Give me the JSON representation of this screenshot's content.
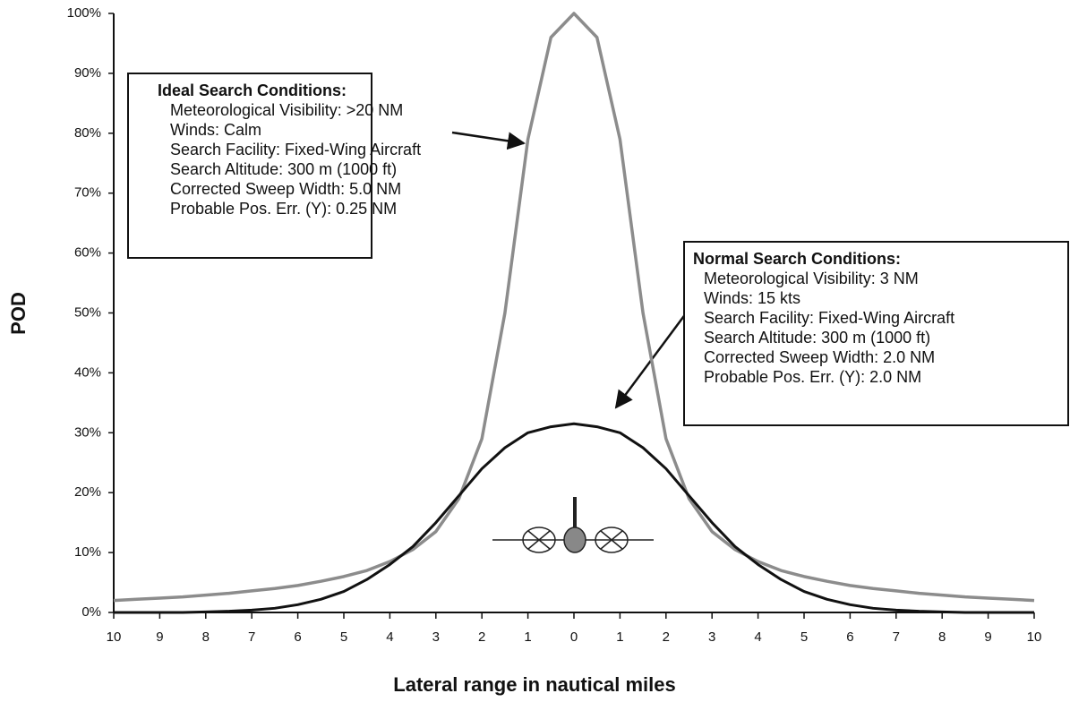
{
  "chart_data": {
    "type": "line",
    "xlabel": "Lateral range in nautical miles",
    "ylabel": "POD",
    "x": [
      -10,
      -9.5,
      -9,
      -8.5,
      -8,
      -7.5,
      -7,
      -6.5,
      -6,
      -5.5,
      -5,
      -4.5,
      -4,
      -3.5,
      -3,
      -2.5,
      -2,
      -1.5,
      -1,
      -0.5,
      0,
      0.5,
      1,
      1.5,
      2,
      2.5,
      3,
      3.5,
      4,
      4.5,
      5,
      5.5,
      6,
      6.5,
      7,
      7.5,
      8,
      8.5,
      9,
      9.5,
      10
    ],
    "series": [
      {
        "name": "Ideal Search Conditions",
        "color": "#8c8c8c",
        "values": [
          2,
          2.2,
          2.4,
          2.6,
          2.9,
          3.2,
          3.6,
          4,
          4.5,
          5.2,
          6,
          7,
          8.5,
          10.5,
          13.5,
          19,
          29,
          50,
          79,
          96,
          100,
          96,
          79,
          50,
          29,
          19,
          13.5,
          10.5,
          8.5,
          7,
          6,
          5.2,
          4.5,
          4,
          3.6,
          3.2,
          2.9,
          2.6,
          2.4,
          2.2,
          2
        ]
      },
      {
        "name": "Normal Search Conditions",
        "color": "#111111",
        "values": [
          0,
          0,
          0,
          0,
          0.1,
          0.2,
          0.4,
          0.7,
          1.3,
          2.2,
          3.5,
          5.5,
          8,
          11,
          15,
          19.5,
          24,
          27.5,
          30,
          31,
          31.5,
          31,
          30,
          27.5,
          24,
          19.5,
          15,
          11,
          8,
          5.5,
          3.5,
          2.2,
          1.3,
          0.7,
          0.4,
          0.2,
          0.1,
          0,
          0,
          0,
          0
        ]
      }
    ],
    "xlim": [
      -10,
      10
    ],
    "xticks": [
      {
        "value": -10,
        "label": "10"
      },
      {
        "value": -9,
        "label": "9"
      },
      {
        "value": -8,
        "label": "8"
      },
      {
        "value": -7,
        "label": "7"
      },
      {
        "value": -6,
        "label": "6"
      },
      {
        "value": -5,
        "label": "5"
      },
      {
        "value": -4,
        "label": "4"
      },
      {
        "value": -3,
        "label": "3"
      },
      {
        "value": -2,
        "label": "2"
      },
      {
        "value": -1,
        "label": "1"
      },
      0,
      1,
      2,
      3,
      4,
      5,
      6,
      7,
      8,
      9,
      10
    ],
    "ylim": [
      0,
      100
    ],
    "yticks": [
      {
        "value": 0,
        "label": "0%"
      },
      {
        "value": 10,
        "label": "10%"
      },
      {
        "value": 20,
        "label": "20%"
      },
      {
        "value": 30,
        "label": "30%"
      },
      {
        "value": 40,
        "label": "40%"
      },
      {
        "value": 50,
        "label": "50%"
      },
      {
        "value": 60,
        "label": "60%"
      },
      {
        "value": 70,
        "label": "70%"
      },
      {
        "value": 80,
        "label": "80%"
      },
      {
        "value": 90,
        "label": "90%"
      },
      {
        "value": 100,
        "label": "100%"
      }
    ],
    "grid": false,
    "annotations": [
      {
        "title": "Ideal Search Conditions:",
        "lines": [
          "Meteorological Visibility: >20 NM",
          "Winds: Calm",
          "Search Facility: Fixed-Wing Aircraft",
          "Search Altitude: 300 m (1000 ft)",
          "Corrected Sweep Width: 5.0 NM",
          "Probable Pos. Err. (Y): 0.25 NM"
        ]
      },
      {
        "title": "Normal Search Conditions:",
        "lines": [
          "Meteorological Visibility: 3 NM",
          "Winds: 15 kts",
          "Search Facility: Fixed-Wing Aircraft",
          "Search Altitude: 300 m (1000 ft)",
          "Corrected Sweep Width: 2.0 NM",
          "Probable Pos. Err. (Y):  2.0 NM"
        ]
      }
    ]
  }
}
